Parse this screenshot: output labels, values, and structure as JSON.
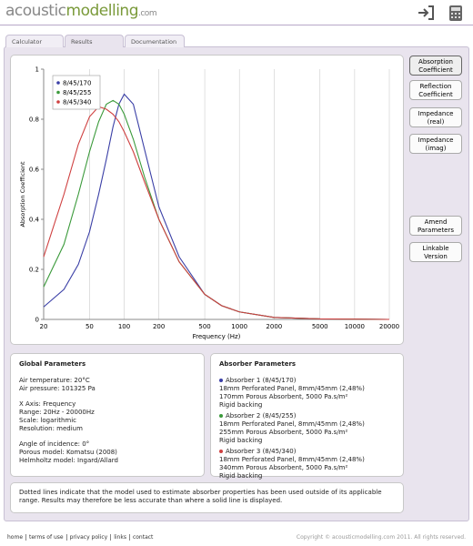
{
  "header": {
    "logo_1": "acoustic",
    "logo_2": "modelling",
    "logo_3": ".com"
  },
  "tabs": [
    "Calculator",
    "Results",
    "Documentation"
  ],
  "chart_data": {
    "type": "line",
    "x_label": "Frequency (Hz)",
    "y_label": "Absorption Coefficient",
    "log_x": true,
    "grid": true,
    "legend": "upper left",
    "x": [
      20,
      30,
      40,
      50,
      60,
      70,
      80,
      90,
      100,
      120,
      150,
      200,
      300,
      500,
      700,
      1000,
      2000,
      5000,
      10000,
      20000
    ],
    "xlim": [
      20,
      20000
    ],
    "xticks": [
      20,
      50,
      100,
      200,
      500,
      1000,
      2000,
      5000,
      10000,
      20000
    ],
    "ylim": [
      0,
      1
    ],
    "yticks": [
      0,
      0.2,
      0.4,
      0.6,
      0.8,
      1
    ],
    "series": [
      {
        "name": "8/45/170",
        "color": "#3a3fa6",
        "values": [
          0.05,
          0.12,
          0.22,
          0.35,
          0.5,
          0.64,
          0.77,
          0.86,
          0.9,
          0.86,
          0.68,
          0.45,
          0.25,
          0.1,
          0.055,
          0.03,
          0.008,
          0.002,
          0.001,
          0
        ]
      },
      {
        "name": "8/45/255",
        "color": "#3b9a3b",
        "values": [
          0.13,
          0.3,
          0.5,
          0.67,
          0.79,
          0.86,
          0.875,
          0.86,
          0.82,
          0.72,
          0.57,
          0.4,
          0.23,
          0.1,
          0.055,
          0.03,
          0.008,
          0.002,
          0.001,
          0
        ]
      },
      {
        "name": "8/45/340",
        "color": "#cf4040",
        "values": [
          0.25,
          0.5,
          0.7,
          0.81,
          0.85,
          0.84,
          0.82,
          0.79,
          0.75,
          0.67,
          0.55,
          0.4,
          0.23,
          0.1,
          0.055,
          0.03,
          0.008,
          0.002,
          0.001,
          0
        ]
      }
    ]
  },
  "buttons": [
    [
      "Absorption",
      "Coefficient"
    ],
    [
      "Reflection",
      "Coefficient"
    ],
    [
      "Impedance",
      "(real)"
    ],
    [
      "Impedance",
      "(imag)"
    ],
    [
      "Amend",
      "Parameters"
    ],
    [
      "Linkable",
      "Version"
    ]
  ],
  "global_parameters": {
    "title": "Global Parameters",
    "groups": [
      [
        "Air temperature: 20°C",
        "Air pressure: 101325 Pa"
      ],
      [
        "X Axis: Frequency",
        "Range: 20Hz - 20000Hz",
        "Scale: logarithmic",
        "Resolution: medium"
      ],
      [
        "Angle of incidence: 0°",
        "Porous model: Komatsu (2008)",
        "Helmholtz model: Ingard/Allard"
      ]
    ]
  },
  "absorber_parameters": {
    "title": "Absorber Parameters",
    "absorbers": [
      {
        "name": "Absorber 1 (8/45/170)",
        "lines": [
          "18mm Perforated Panel, 8mm/45mm (2,48%)",
          "170mm Porous Absorbent, 5000 Pa.s/m²",
          "Rigid backing"
        ]
      },
      {
        "name": "Absorber 2 (8/45/255)",
        "lines": [
          "18mm Perforated Panel, 8mm/45mm (2,48%)",
          "255mm Porous Absorbent, 5000 Pa.s/m²",
          "Rigid backing"
        ]
      },
      {
        "name": "Absorber 3 (8/45/340)",
        "lines": [
          "18mm Perforated Panel, 8mm/45mm (2,48%)",
          "340mm Porous Absorbent, 5000 Pa.s/m²",
          "Rigid backing"
        ]
      }
    ]
  },
  "note": "Dotted lines indicate that the model used to estimate absorber properties has been used outside of its applicable range. Results may therefore be less accurate than where a solid line is displayed.",
  "footer": {
    "links": [
      "home",
      "terms of use",
      "privacy policy",
      "links",
      "contact"
    ],
    "copyright": "Copyright © acousticmodelling.com 2011. All rights reserved."
  }
}
